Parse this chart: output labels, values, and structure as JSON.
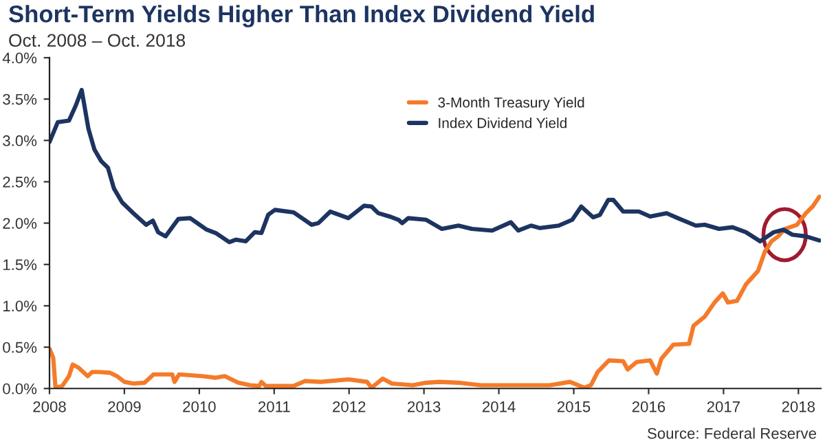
{
  "chart_data": {
    "type": "line",
    "title": "Short-Term Yields Higher Than Index Dividend Yield",
    "subtitle": "Oct. 2008 – Oct. 2018",
    "annotations": [
      "Source: Federal Reserve"
    ],
    "xlim": [
      2008,
      2018.3
    ],
    "xticks": [
      2008,
      2009,
      2010,
      2011,
      2012,
      2013,
      2014,
      2015,
      2016,
      2017,
      2018
    ],
    "ylim": [
      0,
      4
    ],
    "yticks": [
      {
        "value": 0,
        "label": "0.0%"
      },
      {
        "value": 0.5,
        "label": "0.5%"
      },
      {
        "value": 1,
        "label": "1.0%"
      },
      {
        "value": 1.5,
        "label": "1.5%"
      },
      {
        "value": 2,
        "label": "2.0%"
      },
      {
        "value": 2.5,
        "label": "2.5%"
      },
      {
        "value": 3,
        "label": "3.0%"
      },
      {
        "value": 3.5,
        "label": "3.5%"
      },
      {
        "value": 4,
        "label": "4.0%"
      }
    ],
    "grid": false,
    "legend": "top",
    "marker": "none",
    "line_style": "solid",
    "series": [
      {
        "name": "3-Month Treasury Yield",
        "color": "#f47b2a",
        "x": [
          2008.0,
          2008.05,
          2008.08,
          2008.17,
          2008.26,
          2008.31,
          2008.39,
          2008.45,
          2008.51,
          2008.57,
          2008.66,
          2008.81,
          2008.9,
          2009.0,
          2009.12,
          2009.27,
          2009.39,
          2009.64,
          2009.67,
          2009.73,
          2010.04,
          2010.22,
          2010.34,
          2010.52,
          2010.68,
          2010.8,
          2010.83,
          2010.89,
          2011.26,
          2011.41,
          2011.62,
          2011.99,
          2012.24,
          2012.3,
          2012.45,
          2012.57,
          2012.85,
          2013.03,
          2013.21,
          2013.46,
          2013.76,
          2014.07,
          2014.68,
          2014.95,
          2015.14,
          2015.23,
          2015.32,
          2015.47,
          2015.66,
          2015.72,
          2015.84,
          2016.02,
          2016.11,
          2016.17,
          2016.33,
          2016.54,
          2016.6,
          2016.75,
          2016.88,
          2016.99,
          2017.06,
          2017.18,
          2017.3,
          2017.46,
          2017.55,
          2017.64,
          2017.73,
          2017.82,
          2017.98,
          2018.1,
          2018.19,
          2018.28
        ],
        "values": [
          0.48,
          0.37,
          0.01,
          0.03,
          0.15,
          0.29,
          0.25,
          0.2,
          0.15,
          0.2,
          0.2,
          0.19,
          0.15,
          0.08,
          0.06,
          0.07,
          0.17,
          0.17,
          0.08,
          0.17,
          0.15,
          0.13,
          0.15,
          0.07,
          0.04,
          0.03,
          0.08,
          0.03,
          0.03,
          0.09,
          0.08,
          0.11,
          0.08,
          0.01,
          0.12,
          0.06,
          0.04,
          0.07,
          0.08,
          0.07,
          0.04,
          0.04,
          0.04,
          0.08,
          0.01,
          0.04,
          0.2,
          0.34,
          0.33,
          0.23,
          0.32,
          0.34,
          0.18,
          0.36,
          0.53,
          0.54,
          0.76,
          0.87,
          1.04,
          1.15,
          1.04,
          1.06,
          1.26,
          1.42,
          1.65,
          1.78,
          1.84,
          1.93,
          1.98,
          2.12,
          2.2,
          2.32
        ]
      },
      {
        "name": "Index Dividend Yield",
        "color": "#1d3461",
        "x": [
          2008.0,
          2008.11,
          2008.26,
          2008.35,
          2008.43,
          2008.52,
          2008.6,
          2008.69,
          2008.78,
          2008.86,
          2008.97,
          2009.12,
          2009.29,
          2009.38,
          2009.45,
          2009.55,
          2009.72,
          2009.88,
          2010.1,
          2010.22,
          2010.4,
          2010.49,
          2010.62,
          2010.74,
          2010.83,
          2010.92,
          2011.01,
          2011.26,
          2011.5,
          2011.59,
          2011.75,
          2011.99,
          2012.2,
          2012.3,
          2012.39,
          2012.54,
          2012.66,
          2012.71,
          2012.79,
          2013.03,
          2013.24,
          2013.46,
          2013.64,
          2013.91,
          2014.16,
          2014.26,
          2014.43,
          2014.55,
          2014.8,
          2014.98,
          2015.1,
          2015.26,
          2015.35,
          2015.46,
          2015.53,
          2015.66,
          2015.87,
          2016.02,
          2016.24,
          2016.39,
          2016.63,
          2016.75,
          2016.94,
          2017.12,
          2017.3,
          2017.49,
          2017.67,
          2017.8,
          2017.92,
          2018.1,
          2018.28
        ],
        "values": [
          2.98,
          3.22,
          3.24,
          3.42,
          3.61,
          3.14,
          2.89,
          2.75,
          2.67,
          2.42,
          2.25,
          2.12,
          1.98,
          2.03,
          1.89,
          1.84,
          2.05,
          2.06,
          1.92,
          1.88,
          1.77,
          1.8,
          1.78,
          1.89,
          1.88,
          2.1,
          2.16,
          2.13,
          1.98,
          2.0,
          2.14,
          2.06,
          2.21,
          2.2,
          2.12,
          2.08,
          2.04,
          2.0,
          2.06,
          2.04,
          1.93,
          1.97,
          1.93,
          1.91,
          2.01,
          1.91,
          1.97,
          1.94,
          1.97,
          2.04,
          2.2,
          2.07,
          2.1,
          2.28,
          2.28,
          2.14,
          2.14,
          2.08,
          2.12,
          2.06,
          1.97,
          1.98,
          1.93,
          1.95,
          1.89,
          1.78,
          1.89,
          1.92,
          1.86,
          1.84,
          1.79
        ]
      }
    ]
  }
}
